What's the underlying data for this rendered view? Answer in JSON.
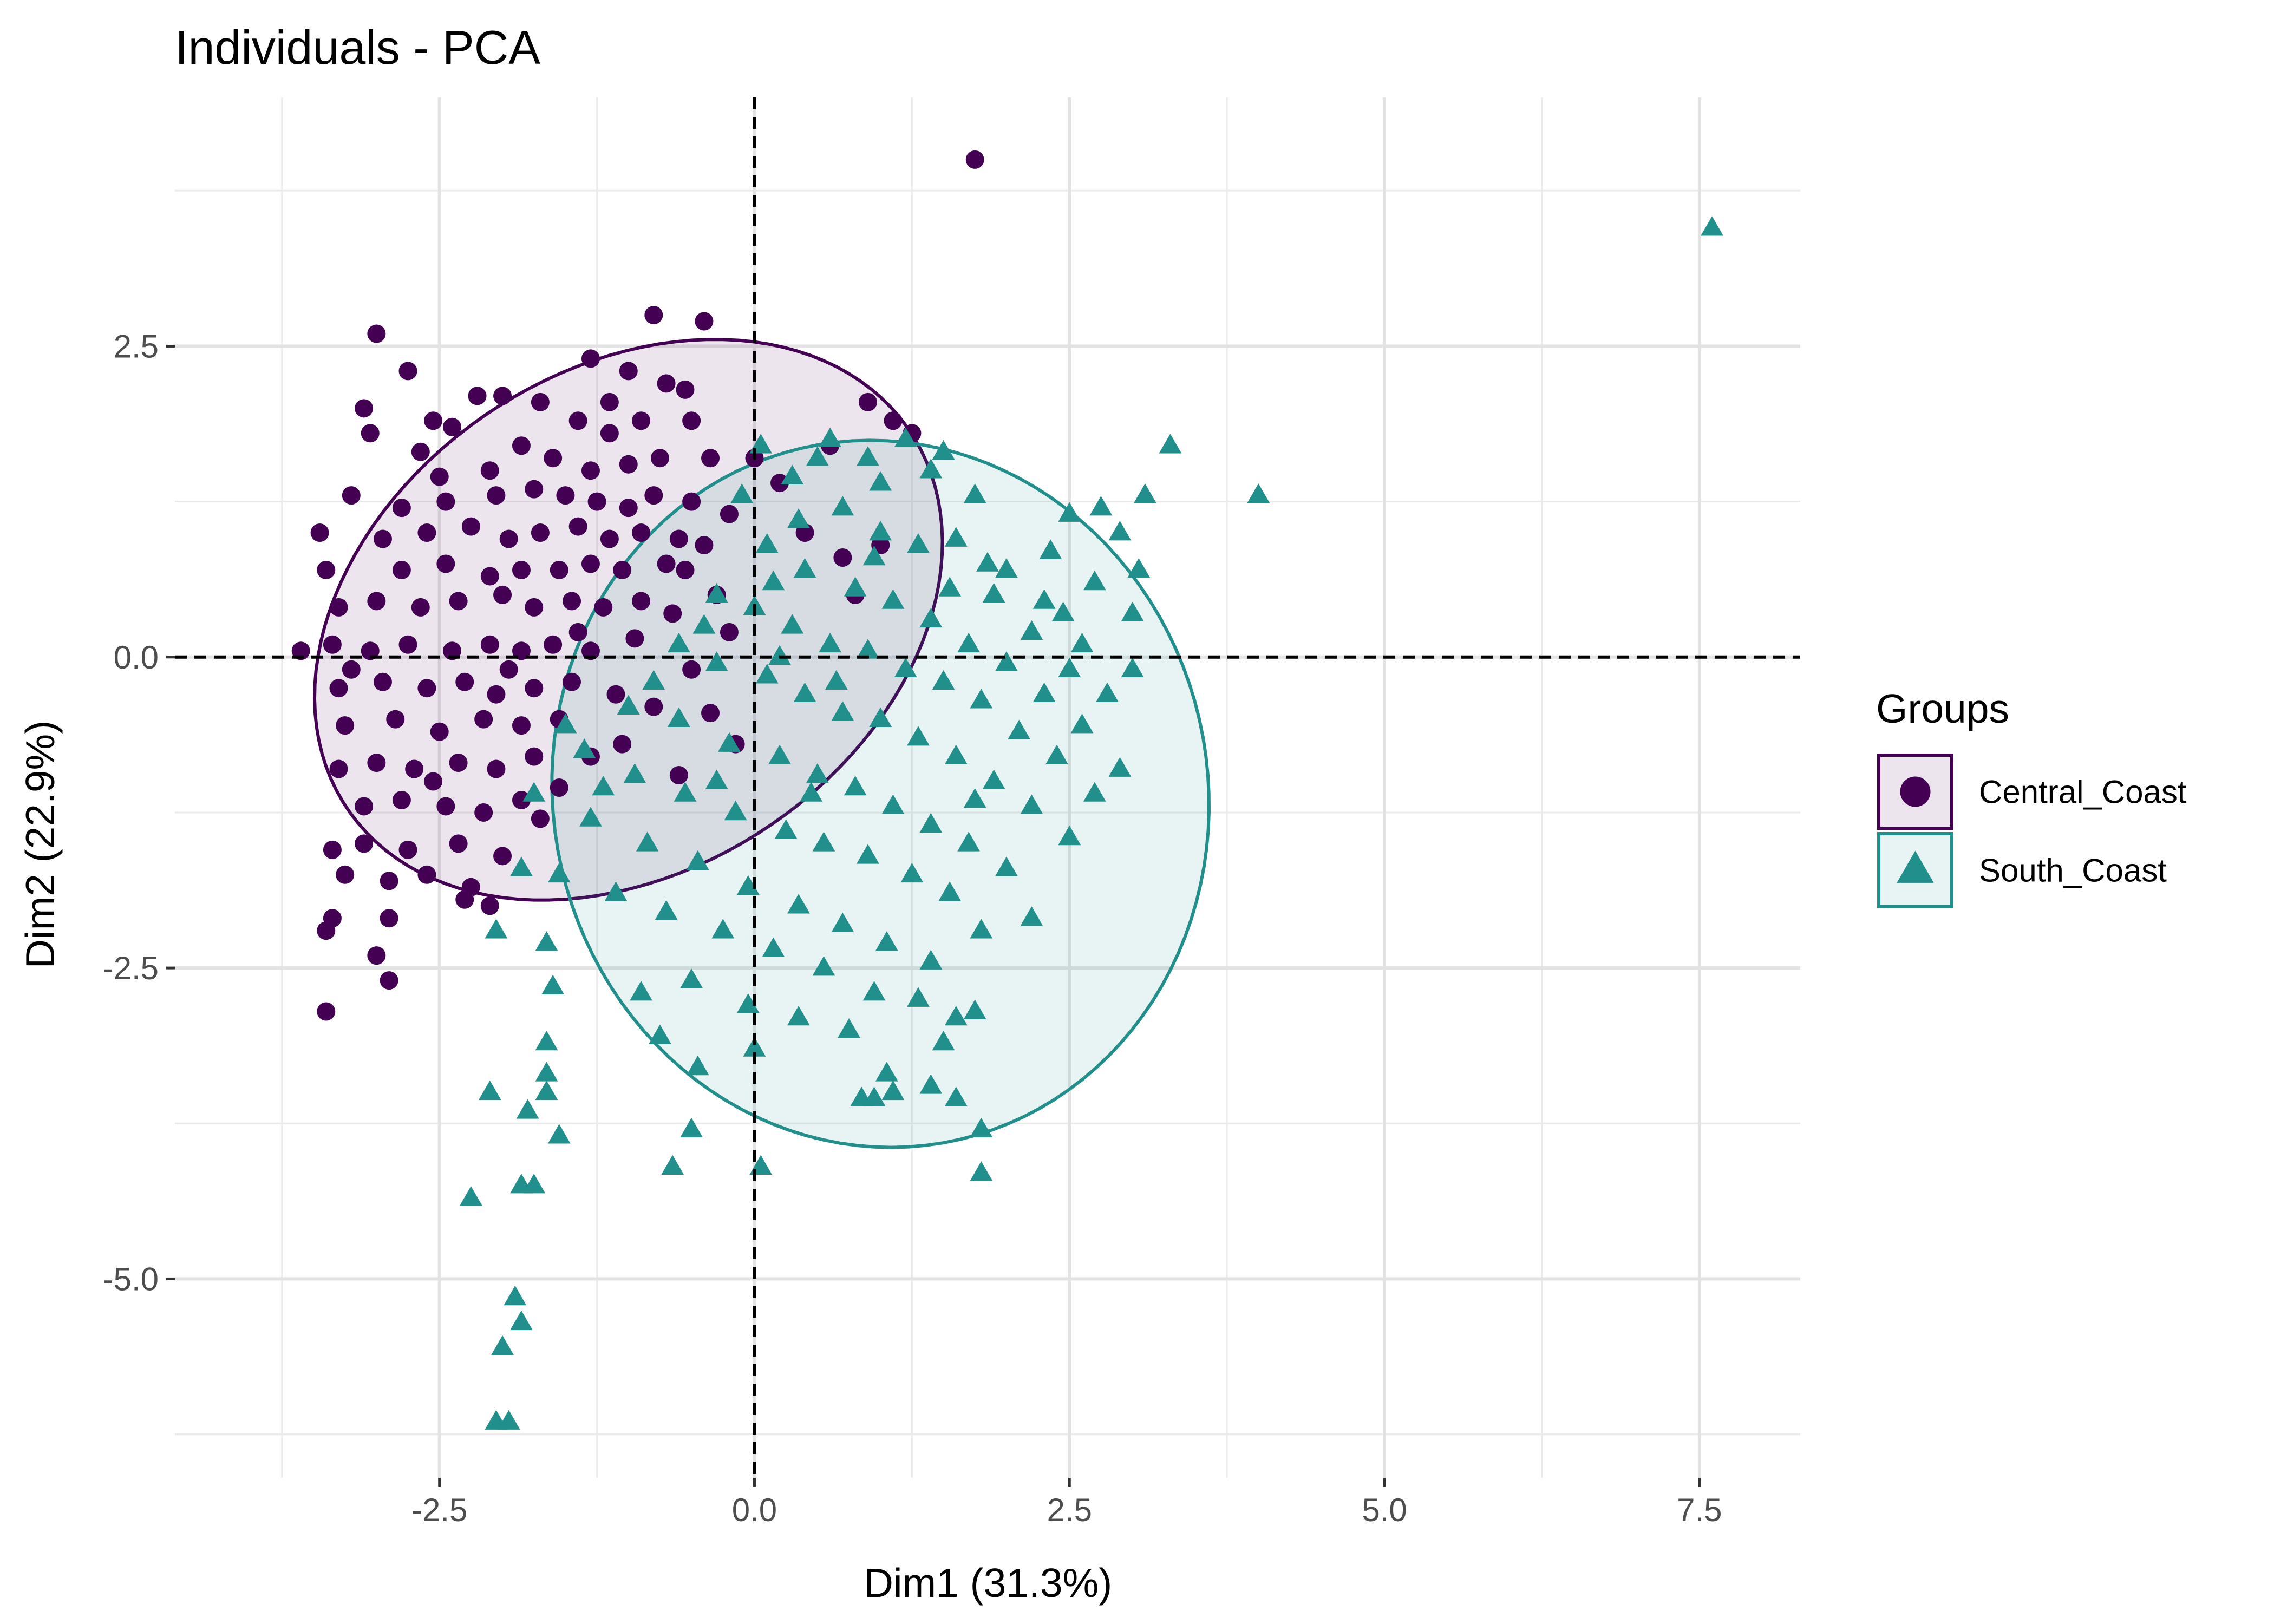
{
  "chart_data": {
    "type": "scatter",
    "title": "Individuals - PCA",
    "xlabel": "Dim1 (31.3%)",
    "ylabel": "Dim2 (22.9%)",
    "xlim": [
      -4.6,
      8.3
    ],
    "ylim": [
      -6.6,
      4.5
    ],
    "x_ticks": [
      -2.5,
      0.0,
      2.5,
      5.0,
      7.5
    ],
    "x_tick_labels": [
      "-2.5",
      "0.0",
      "2.5",
      "5.0",
      "7.5"
    ],
    "y_ticks": [
      2.5,
      0.0,
      -2.5,
      -5.0
    ],
    "y_tick_labels": [
      "2.5",
      "0.0",
      "-2.5",
      "-5.0"
    ],
    "grid": true,
    "reference_lines": {
      "x": 0,
      "y": 0,
      "style": "dashed"
    },
    "legend": {
      "title": "Groups",
      "placement": "right"
    },
    "series": [
      {
        "name": "Central_Coast",
        "marker": "circle",
        "color": "#440154",
        "ellipse": {
          "center": [
            -1.0,
            0.3
          ],
          "semi_axis_x": 2.7,
          "semi_axis_y": 2.0,
          "angle_deg": 35
        },
        "points": [
          [
            1.75,
            4.0
          ],
          [
            -3.0,
            2.6
          ],
          [
            -0.8,
            2.75
          ],
          [
            -0.4,
            2.7
          ],
          [
            -2.75,
            2.3
          ],
          [
            -3.1,
            2.0
          ],
          [
            -2.55,
            1.9
          ],
          [
            -3.05,
            1.8
          ],
          [
            -2.4,
            1.85
          ],
          [
            -2.0,
            2.1
          ],
          [
            -1.7,
            2.05
          ],
          [
            -1.3,
            2.4
          ],
          [
            -1.0,
            2.3
          ],
          [
            -0.7,
            2.2
          ],
          [
            -0.5,
            1.9
          ],
          [
            -1.85,
            1.7
          ],
          [
            -1.4,
            1.9
          ],
          [
            -1.15,
            1.8
          ],
          [
            -0.9,
            1.9
          ],
          [
            -2.1,
            1.5
          ],
          [
            -1.6,
            1.6
          ],
          [
            -1.3,
            1.5
          ],
          [
            -1.0,
            1.55
          ],
          [
            -0.75,
            1.6
          ],
          [
            -0.35,
            1.6
          ],
          [
            -3.2,
            1.3
          ],
          [
            -2.8,
            1.2
          ],
          [
            -2.45,
            1.25
          ],
          [
            -2.05,
            1.3
          ],
          [
            -1.75,
            1.35
          ],
          [
            -1.5,
            1.3
          ],
          [
            -1.25,
            1.25
          ],
          [
            -1.0,
            1.2
          ],
          [
            -0.8,
            1.3
          ],
          [
            -0.5,
            1.25
          ],
          [
            -3.45,
            1.0
          ],
          [
            -2.95,
            0.95
          ],
          [
            -2.6,
            1.0
          ],
          [
            -2.25,
            1.05
          ],
          [
            -1.95,
            0.95
          ],
          [
            -1.7,
            1.0
          ],
          [
            -1.4,
            1.05
          ],
          [
            -1.15,
            0.95
          ],
          [
            -0.9,
            1.0
          ],
          [
            -0.6,
            0.95
          ],
          [
            -2.8,
            0.7
          ],
          [
            -2.45,
            0.75
          ],
          [
            -2.1,
            0.65
          ],
          [
            -1.85,
            0.7
          ],
          [
            -1.55,
            0.7
          ],
          [
            -1.3,
            0.75
          ],
          [
            -1.05,
            0.7
          ],
          [
            -0.7,
            0.75
          ],
          [
            -3.3,
            0.4
          ],
          [
            -3.0,
            0.45
          ],
          [
            -2.65,
            0.4
          ],
          [
            -2.35,
            0.45
          ],
          [
            -2.0,
            0.5
          ],
          [
            -1.75,
            0.4
          ],
          [
            -1.45,
            0.45
          ],
          [
            -1.2,
            0.4
          ],
          [
            -0.9,
            0.45
          ],
          [
            -3.6,
            0.05
          ],
          [
            -3.35,
            0.1
          ],
          [
            -3.05,
            0.05
          ],
          [
            -2.75,
            0.1
          ],
          [
            -2.4,
            0.05
          ],
          [
            -2.1,
            0.1
          ],
          [
            -1.85,
            0.05
          ],
          [
            -1.6,
            0.1
          ],
          [
            -1.3,
            0.05
          ],
          [
            -3.3,
            -0.25
          ],
          [
            -2.95,
            -0.2
          ],
          [
            -2.6,
            -0.25
          ],
          [
            -2.3,
            -0.2
          ],
          [
            -2.05,
            -0.3
          ],
          [
            -1.75,
            -0.25
          ],
          [
            -1.45,
            -0.2
          ],
          [
            -3.25,
            -0.55
          ],
          [
            -2.85,
            -0.5
          ],
          [
            -2.5,
            -0.6
          ],
          [
            -2.15,
            -0.5
          ],
          [
            -1.85,
            -0.55
          ],
          [
            -1.55,
            -0.5
          ],
          [
            -3.3,
            -0.9
          ],
          [
            -3.0,
            -0.85
          ],
          [
            -2.7,
            -0.9
          ],
          [
            -2.35,
            -0.85
          ],
          [
            -2.05,
            -0.9
          ],
          [
            -1.75,
            -0.8
          ],
          [
            -3.1,
            -1.2
          ],
          [
            -2.8,
            -1.15
          ],
          [
            -2.45,
            -1.2
          ],
          [
            -2.15,
            -1.25
          ],
          [
            -1.85,
            -1.15
          ],
          [
            -3.35,
            -1.55
          ],
          [
            -3.1,
            -1.5
          ],
          [
            -2.75,
            -1.55
          ],
          [
            -2.35,
            -1.5
          ],
          [
            -2.0,
            -1.6
          ],
          [
            -3.25,
            -1.75
          ],
          [
            -2.9,
            -1.8
          ],
          [
            -2.6,
            -1.75
          ],
          [
            -2.25,
            -1.85
          ],
          [
            -2.3,
            -1.95
          ],
          [
            -3.35,
            -2.1
          ],
          [
            -3.4,
            -2.2
          ],
          [
            -2.9,
            -2.1
          ],
          [
            -2.1,
            -2.0
          ],
          [
            -3.0,
            -2.4
          ],
          [
            -2.9,
            -2.6
          ],
          [
            -3.4,
            -2.85
          ],
          [
            -0.55,
            0.7
          ],
          [
            -0.3,
            0.5
          ],
          [
            0.0,
            1.6
          ],
          [
            0.2,
            1.4
          ],
          [
            0.6,
            1.7
          ],
          [
            0.9,
            2.05
          ],
          [
            1.1,
            1.9
          ],
          [
            1.25,
            1.8
          ],
          [
            0.4,
            1.0
          ],
          [
            0.7,
            0.8
          ],
          [
            1.0,
            0.9
          ],
          [
            0.8,
            0.5
          ],
          [
            -0.2,
            0.2
          ],
          [
            -0.5,
            -0.1
          ],
          [
            -0.8,
            -0.4
          ],
          [
            -1.05,
            -0.7
          ],
          [
            -1.3,
            -0.8
          ],
          [
            -1.55,
            -1.05
          ],
          [
            -1.7,
            -1.3
          ],
          [
            -0.35,
            -0.45
          ],
          [
            -0.15,
            -0.7
          ],
          [
            -0.6,
            -0.95
          ],
          [
            -1.1,
            -0.3
          ],
          [
            -1.4,
            0.2
          ],
          [
            -0.95,
            0.15
          ],
          [
            -0.65,
            0.35
          ],
          [
            -0.4,
            0.9
          ],
          [
            -0.2,
            1.15
          ],
          [
            -1.15,
            2.05
          ],
          [
            -0.55,
            2.15
          ],
          [
            -2.2,
            2.1
          ],
          [
            -2.65,
            1.65
          ],
          [
            -3.4,
            0.7
          ],
          [
            -3.2,
            -0.1
          ],
          [
            -2.55,
            -1.0
          ],
          [
            -1.95,
            -0.1
          ],
          [
            -2.5,
            1.45
          ]
        ]
      },
      {
        "name": "South_Coast",
        "marker": "triangle",
        "color": "#21908c",
        "ellipse": {
          "center": [
            1.0,
            -1.1
          ],
          "semi_axis_x": 2.6,
          "semi_axis_y": 2.85,
          "angle_deg": 10
        },
        "points": [
          [
            7.6,
            3.45
          ],
          [
            4.0,
            1.3
          ],
          [
            3.3,
            1.7
          ],
          [
            3.1,
            1.3
          ],
          [
            2.9,
            1.0
          ],
          [
            2.5,
            1.15
          ],
          [
            2.7,
            0.6
          ],
          [
            3.0,
            0.35
          ],
          [
            2.6,
            0.1
          ],
          [
            2.3,
            0.45
          ],
          [
            2.0,
            0.7
          ],
          [
            1.75,
            1.3
          ],
          [
            1.5,
            1.65
          ],
          [
            1.2,
            1.75
          ],
          [
            0.9,
            1.6
          ],
          [
            0.6,
            1.75
          ],
          [
            0.3,
            1.45
          ],
          [
            0.05,
            1.7
          ],
          [
            -0.1,
            1.3
          ],
          [
            0.35,
            1.1
          ],
          [
            0.7,
            1.2
          ],
          [
            1.0,
            1.0
          ],
          [
            1.3,
            0.9
          ],
          [
            1.6,
            0.95
          ],
          [
            1.9,
            0.5
          ],
          [
            2.2,
            0.2
          ],
          [
            2.5,
            -0.1
          ],
          [
            2.8,
            -0.3
          ],
          [
            3.0,
            -0.1
          ],
          [
            0.1,
            0.9
          ],
          [
            0.4,
            0.7
          ],
          [
            0.8,
            0.55
          ],
          [
            1.1,
            0.45
          ],
          [
            1.4,
            0.3
          ],
          [
            1.7,
            0.1
          ],
          [
            2.0,
            -0.05
          ],
          [
            2.3,
            -0.3
          ],
          [
            2.6,
            -0.55
          ],
          [
            2.9,
            -0.9
          ],
          [
            -0.3,
            0.5
          ],
          [
            0.0,
            0.4
          ],
          [
            0.3,
            0.25
          ],
          [
            0.6,
            0.1
          ],
          [
            0.9,
            0.05
          ],
          [
            1.2,
            -0.1
          ],
          [
            1.5,
            -0.2
          ],
          [
            1.8,
            -0.35
          ],
          [
            2.1,
            -0.6
          ],
          [
            2.4,
            -0.8
          ],
          [
            2.7,
            -1.1
          ],
          [
            -0.6,
            0.1
          ],
          [
            -0.3,
            -0.05
          ],
          [
            0.1,
            -0.15
          ],
          [
            0.4,
            -0.3
          ],
          [
            0.7,
            -0.45
          ],
          [
            1.0,
            -0.5
          ],
          [
            1.3,
            -0.65
          ],
          [
            1.6,
            -0.8
          ],
          [
            1.9,
            -1.0
          ],
          [
            2.2,
            -1.2
          ],
          [
            2.5,
            -1.45
          ],
          [
            -1.0,
            -0.4
          ],
          [
            -0.6,
            -0.5
          ],
          [
            -0.2,
            -0.7
          ],
          [
            0.2,
            -0.8
          ],
          [
            0.5,
            -0.95
          ],
          [
            0.8,
            -1.05
          ],
          [
            1.1,
            -1.2
          ],
          [
            1.4,
            -1.35
          ],
          [
            1.7,
            -1.5
          ],
          [
            2.0,
            -1.7
          ],
          [
            2.2,
            -2.1
          ],
          [
            -1.35,
            -0.75
          ],
          [
            -0.95,
            -0.95
          ],
          [
            -0.55,
            -1.1
          ],
          [
            -0.15,
            -1.25
          ],
          [
            0.25,
            -1.4
          ],
          [
            0.55,
            -1.5
          ],
          [
            0.9,
            -1.6
          ],
          [
            1.25,
            -1.75
          ],
          [
            1.55,
            -1.9
          ],
          [
            1.8,
            -2.2
          ],
          [
            -1.75,
            -1.1
          ],
          [
            -1.3,
            -1.3
          ],
          [
            -0.85,
            -1.5
          ],
          [
            -0.45,
            -1.65
          ],
          [
            -0.05,
            -1.85
          ],
          [
            0.35,
            -2.0
          ],
          [
            0.7,
            -2.15
          ],
          [
            1.05,
            -2.3
          ],
          [
            1.4,
            -2.45
          ],
          [
            -1.85,
            -1.7
          ],
          [
            -1.55,
            -1.75
          ],
          [
            -1.1,
            -1.9
          ],
          [
            -0.7,
            -2.05
          ],
          [
            -0.25,
            -2.2
          ],
          [
            0.15,
            -2.35
          ],
          [
            0.55,
            -2.5
          ],
          [
            0.95,
            -2.7
          ],
          [
            1.3,
            -2.75
          ],
          [
            1.75,
            -2.85
          ],
          [
            -2.05,
            -2.2
          ],
          [
            -1.65,
            -2.3
          ],
          [
            -1.6,
            -2.65
          ],
          [
            -0.9,
            -2.7
          ],
          [
            -0.5,
            -2.6
          ],
          [
            -0.05,
            -2.8
          ],
          [
            0.35,
            -2.9
          ],
          [
            0.75,
            -3.0
          ],
          [
            1.05,
            -3.35
          ],
          [
            1.5,
            -3.1
          ],
          [
            1.6,
            -2.9
          ],
          [
            -0.75,
            -3.05
          ],
          [
            -0.45,
            -3.3
          ],
          [
            0.0,
            -3.15
          ],
          [
            1.4,
            -3.45
          ],
          [
            1.6,
            -3.55
          ],
          [
            0.95,
            -3.55
          ],
          [
            0.85,
            -3.55
          ],
          [
            1.1,
            -3.5
          ],
          [
            -1.65,
            -3.1
          ],
          [
            -1.65,
            -3.35
          ],
          [
            -1.65,
            -3.5
          ],
          [
            -2.1,
            -3.5
          ],
          [
            -1.8,
            -3.65
          ],
          [
            -1.55,
            -3.85
          ],
          [
            -0.5,
            -3.8
          ],
          [
            1.8,
            -3.8
          ],
          [
            0.05,
            -4.1
          ],
          [
            -0.65,
            -4.1
          ],
          [
            1.8,
            -4.15
          ],
          [
            -2.25,
            -4.35
          ],
          [
            -1.85,
            -4.25
          ],
          [
            -1.75,
            -4.25
          ],
          [
            -1.9,
            -5.15
          ],
          [
            -1.85,
            -5.35
          ],
          [
            -2.0,
            -5.55
          ],
          [
            -1.95,
            -6.15
          ],
          [
            -2.05,
            -6.15
          ],
          [
            0.5,
            1.6
          ],
          [
            1.0,
            1.4
          ],
          [
            1.4,
            1.5
          ],
          [
            0.2,
            0.0
          ],
          [
            -0.4,
            0.25
          ],
          [
            0.65,
            -0.2
          ],
          [
            1.85,
            0.75
          ],
          [
            2.75,
            1.2
          ],
          [
            3.05,
            0.7
          ],
          [
            2.35,
            0.85
          ],
          [
            -1.2,
            -1.05
          ],
          [
            -0.3,
            -1.0
          ],
          [
            0.45,
            -1.1
          ],
          [
            1.75,
            -1.15
          ],
          [
            2.45,
            0.35
          ],
          [
            -0.8,
            -0.2
          ],
          [
            0.95,
            0.8
          ],
          [
            1.55,
            0.55
          ],
          [
            0.15,
            0.6
          ],
          [
            -1.5,
            -0.55
          ]
        ]
      }
    ]
  }
}
